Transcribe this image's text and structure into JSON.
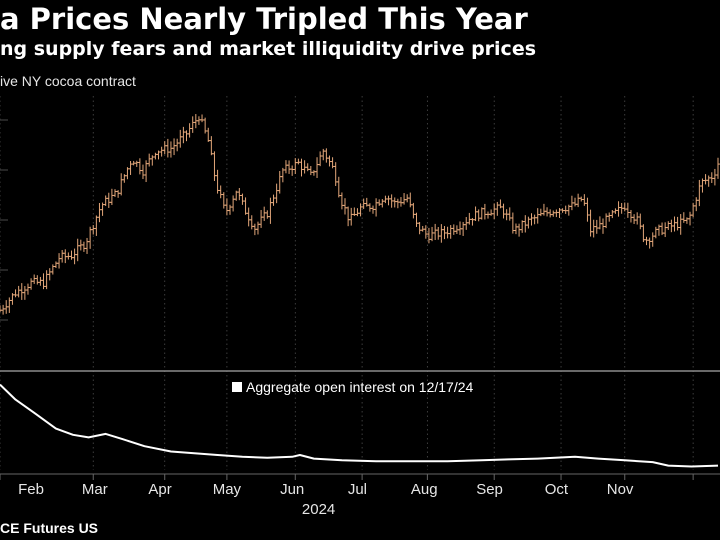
{
  "header": {
    "title": "a Prices Nearly Tripled This Year",
    "subtitle": "ng supply fears and market illiquidity drive prices",
    "series_label": "ive NY cocoa contract"
  },
  "footer": {
    "source": "CE Futures US"
  },
  "colors": {
    "background": "#000000",
    "price_bars": "#e3a77a",
    "open_interest": "#ffffff",
    "grid": "#4a4a4a",
    "separator": "#8c8c8c"
  },
  "chart_data": [
    {
      "type": "ohlc",
      "series_name": "ive NY cocoa contract",
      "x_unit": "week of 2024 (fractional)",
      "y_unit": "index (unlabeled)",
      "ylim": [
        0,
        100
      ],
      "points": [
        {
          "x": 0.0,
          "close": 14
        },
        {
          "x": 1.0,
          "close": 21
        },
        {
          "x": 2.0,
          "close": 25
        },
        {
          "x": 2.8,
          "close": 25
        },
        {
          "x": 3.8,
          "close": 35
        },
        {
          "x": 4.6,
          "close": 36
        },
        {
          "x": 5.5,
          "close": 41
        },
        {
          "x": 6.5,
          "close": 56
        },
        {
          "x": 7.5,
          "close": 61
        },
        {
          "x": 8.5,
          "close": 75
        },
        {
          "x": 9.2,
          "close": 70
        },
        {
          "x": 10.0,
          "close": 78
        },
        {
          "x": 11.0,
          "close": 79
        },
        {
          "x": 12.0,
          "close": 85
        },
        {
          "x": 12.8,
          "close": 92
        },
        {
          "x": 13.4,
          "close": 82
        },
        {
          "x": 13.9,
          "close": 65
        },
        {
          "x": 14.5,
          "close": 53
        },
        {
          "x": 15.2,
          "close": 62
        },
        {
          "x": 15.7,
          "close": 55
        },
        {
          "x": 16.4,
          "close": 47
        },
        {
          "x": 17.2,
          "close": 53
        },
        {
          "x": 18.2,
          "close": 70
        },
        {
          "x": 19.2,
          "close": 73
        },
        {
          "x": 20.0,
          "close": 68
        },
        {
          "x": 20.8,
          "close": 78
        },
        {
          "x": 21.5,
          "close": 70
        },
        {
          "x": 21.9,
          "close": 59
        },
        {
          "x": 22.5,
          "close": 50
        },
        {
          "x": 23.2,
          "close": 55
        },
        {
          "x": 24.0,
          "close": 56
        },
        {
          "x": 24.8,
          "close": 60
        },
        {
          "x": 25.4,
          "close": 57
        },
        {
          "x": 26.2,
          "close": 59
        },
        {
          "x": 26.8,
          "close": 48
        },
        {
          "x": 27.5,
          "close": 44
        },
        {
          "x": 28.5,
          "close": 45
        },
        {
          "x": 29.5,
          "close": 48
        },
        {
          "x": 30.5,
          "close": 52
        },
        {
          "x": 31.5,
          "close": 54
        },
        {
          "x": 32.3,
          "close": 55
        },
        {
          "x": 33.1,
          "close": 46
        },
        {
          "x": 34.1,
          "close": 50
        },
        {
          "x": 35.1,
          "close": 53
        },
        {
          "x": 36.1,
          "close": 55
        },
        {
          "x": 36.9,
          "close": 56
        },
        {
          "x": 37.5,
          "close": 59
        },
        {
          "x": 38.0,
          "close": 46
        },
        {
          "x": 38.6,
          "close": 48
        },
        {
          "x": 39.4,
          "close": 52
        },
        {
          "x": 40.2,
          "close": 56
        },
        {
          "x": 41.0,
          "close": 50
        },
        {
          "x": 41.5,
          "close": 42
        },
        {
          "x": 42.4,
          "close": 46
        },
        {
          "x": 43.3,
          "close": 48
        },
        {
          "x": 44.3,
          "close": 50
        },
        {
          "x": 45.1,
          "close": 65
        },
        {
          "x": 45.9,
          "close": 68
        },
        {
          "x": 46.2,
          "close": 73
        }
      ],
      "gridlines": 9
    },
    {
      "type": "line",
      "legend": [
        "Aggregate open interest on 12/17/24"
      ],
      "x_unit": "week of 2024 (fractional)",
      "y_unit": "index (unlabeled)",
      "ylim": [
        0,
        100
      ],
      "points": [
        {
          "x": 0.0,
          "y": 97
        },
        {
          "x": 1.0,
          "y": 80
        },
        {
          "x": 2.2,
          "y": 65
        },
        {
          "x": 3.6,
          "y": 47
        },
        {
          "x": 4.7,
          "y": 40
        },
        {
          "x": 5.7,
          "y": 37
        },
        {
          "x": 6.8,
          "y": 41
        },
        {
          "x": 7.9,
          "y": 35
        },
        {
          "x": 9.3,
          "y": 27
        },
        {
          "x": 11.0,
          "y": 21
        },
        {
          "x": 12.5,
          "y": 19
        },
        {
          "x": 14.0,
          "y": 17
        },
        {
          "x": 15.6,
          "y": 15
        },
        {
          "x": 17.2,
          "y": 14
        },
        {
          "x": 18.8,
          "y": 15
        },
        {
          "x": 19.3,
          "y": 17
        },
        {
          "x": 20.2,
          "y": 13
        },
        {
          "x": 22.0,
          "y": 11
        },
        {
          "x": 24.2,
          "y": 10
        },
        {
          "x": 26.5,
          "y": 10
        },
        {
          "x": 28.8,
          "y": 10
        },
        {
          "x": 31.0,
          "y": 11
        },
        {
          "x": 32.7,
          "y": 12
        },
        {
          "x": 34.6,
          "y": 13
        },
        {
          "x": 37.0,
          "y": 15
        },
        {
          "x": 38.5,
          "y": 13
        },
        {
          "x": 40.2,
          "y": 11
        },
        {
          "x": 42.0,
          "y": 9
        },
        {
          "x": 43.0,
          "y": 5
        },
        {
          "x": 44.5,
          "y": 4
        },
        {
          "x": 46.2,
          "y": 5
        }
      ]
    }
  ],
  "x_axis": {
    "months": [
      {
        "label": "Feb",
        "x": 2.0
      },
      {
        "label": "Mar",
        "x": 6.1
      },
      {
        "label": "Apr",
        "x": 10.3
      },
      {
        "label": "May",
        "x": 14.6
      },
      {
        "label": "Jun",
        "x": 18.8
      },
      {
        "label": "Jul",
        "x": 23.0
      },
      {
        "label": "Aug",
        "x": 27.3
      },
      {
        "label": "Sep",
        "x": 31.5
      },
      {
        "label": "Oct",
        "x": 35.8
      },
      {
        "label": "Nov",
        "x": 39.9
      }
    ],
    "year": {
      "label": "2024",
      "x": 20.5
    }
  }
}
